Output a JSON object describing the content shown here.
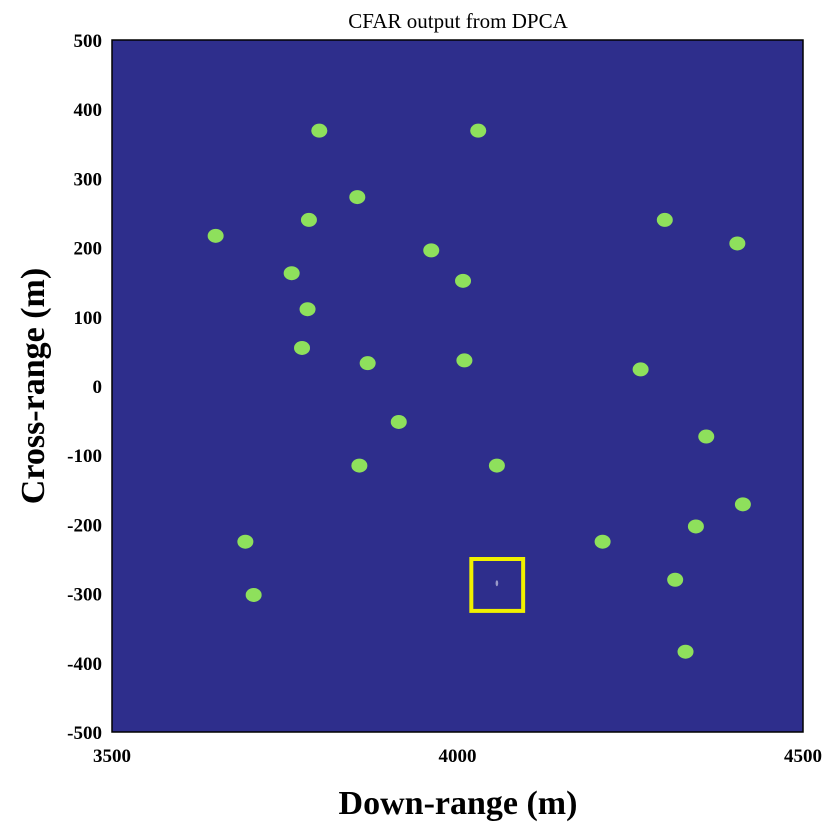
{
  "chart_data": {
    "type": "scatter",
    "title": "CFAR output from DPCA",
    "xlabel": "Down-range (m)",
    "ylabel": "Cross-range (m)",
    "xlim": [
      3500,
      4500
    ],
    "ylim": [
      -500,
      500
    ],
    "xticks": [
      3500,
      4000,
      4500
    ],
    "yticks": [
      -500,
      -400,
      -300,
      -200,
      -100,
      0,
      100,
      200,
      300,
      400,
      500
    ],
    "grid": false,
    "background_color": "#2E2E8C",
    "point_color": "#8EE05C",
    "highlight_color": "#F0F000",
    "points": [
      {
        "x": 3800,
        "y": 369
      },
      {
        "x": 4030,
        "y": 369
      },
      {
        "x": 3855,
        "y": 273
      },
      {
        "x": 3785,
        "y": 240
      },
      {
        "x": 4300,
        "y": 240
      },
      {
        "x": 3650,
        "y": 217
      },
      {
        "x": 4405,
        "y": 206
      },
      {
        "x": 3962,
        "y": 196
      },
      {
        "x": 4008,
        "y": 152
      },
      {
        "x": 3760,
        "y": 163
      },
      {
        "x": 3783,
        "y": 111
      },
      {
        "x": 3775,
        "y": 55
      },
      {
        "x": 3870,
        "y": 33
      },
      {
        "x": 4010,
        "y": 37
      },
      {
        "x": 4265,
        "y": 24
      },
      {
        "x": 3915,
        "y": -52
      },
      {
        "x": 4360,
        "y": -73
      },
      {
        "x": 3858,
        "y": -115
      },
      {
        "x": 4057,
        "y": -115
      },
      {
        "x": 4413,
        "y": -171
      },
      {
        "x": 4345,
        "y": -203
      },
      {
        "x": 3693,
        "y": -225
      },
      {
        "x": 4210,
        "y": -225
      },
      {
        "x": 4315,
        "y": -280
      },
      {
        "x": 3705,
        "y": -302
      },
      {
        "x": 4330,
        "y": -384
      }
    ],
    "highlight_box": {
      "x0": 4020,
      "x1": 4095,
      "y0": -325,
      "y1": -250
    },
    "highlight_point": {
      "x": 4057,
      "y": -285
    }
  }
}
